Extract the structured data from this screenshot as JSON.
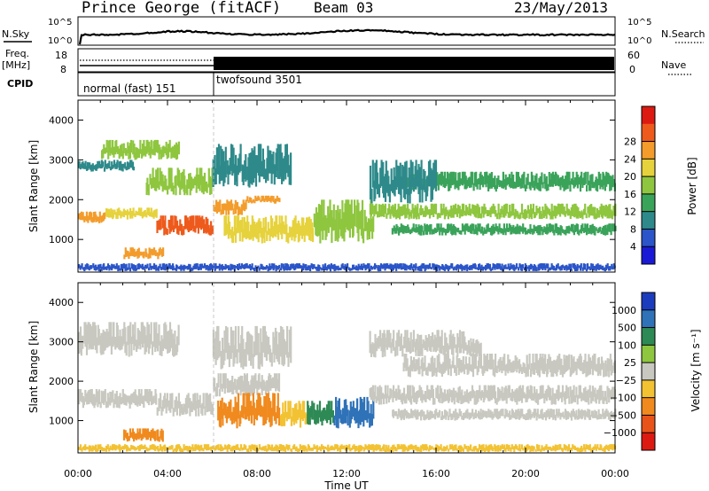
{
  "header": {
    "station": "Prince George (fitACF)",
    "beam": "Beam 03",
    "date": "23/May/2013"
  },
  "strips": {
    "nsky_label": "N.Sky",
    "nsearch_label": "N.Search",
    "noise_ticks_left": [
      "10^5",
      "10^0"
    ],
    "noise_ticks_right": [
      "10^5",
      "10^0"
    ],
    "freq_label": "Freq.",
    "freq_unit": "[MHz]",
    "freq_ticks": [
      "18",
      "8"
    ],
    "nave_label": "Nave",
    "nave_ticks": [
      "60",
      "0"
    ],
    "cpid_label": "CPID",
    "cpid_segments": [
      "normal (fast) 151",
      "twofsound 3501"
    ]
  },
  "chart_data": [
    {
      "type": "heatmap",
      "panel": "power",
      "ylabel": "Slant Range [km]",
      "xlabel": "Time UT",
      "x_ticks": [
        "00:00",
        "04:00",
        "08:00",
        "12:00",
        "16:00",
        "20:00",
        "00:00"
      ],
      "y_ticks": [
        1000,
        2000,
        3000,
        4000
      ],
      "xlim_hours": [
        0,
        24
      ],
      "ylim_km": [
        180,
        4500
      ],
      "colorbar": {
        "label": "Power [dB]",
        "ticks": [
          4,
          8,
          12,
          16,
          20,
          24,
          28
        ],
        "colors": [
          "#1a1ad6",
          "#2b55c8",
          "#2e8a8a",
          "#3aa35a",
          "#8ec63f",
          "#e6d23c",
          "#f39c2c",
          "#ee5a1c",
          "#dd1a12"
        ]
      },
      "scatter_bands": [
        {
          "t0": 0.0,
          "t1": 1.2,
          "r0": 1400,
          "r1": 1700,
          "level": 24
        },
        {
          "t0": 1.2,
          "t1": 3.5,
          "r0": 1500,
          "r1": 1800,
          "level": 18
        },
        {
          "t0": 3.5,
          "t1": 6.0,
          "r0": 1100,
          "r1": 1600,
          "level": 26
        },
        {
          "t0": 6.0,
          "t1": 7.5,
          "r0": 1600,
          "r1": 2000,
          "level": 24
        },
        {
          "t0": 7.5,
          "t1": 9.0,
          "r0": 1900,
          "r1": 2100,
          "level": 22
        },
        {
          "t0": 0.0,
          "t1": 2.5,
          "r0": 2700,
          "r1": 3000,
          "level": 8
        },
        {
          "t0": 1.0,
          "t1": 4.5,
          "r0": 3000,
          "r1": 3500,
          "level": 14
        },
        {
          "t0": 3.0,
          "t1": 6.0,
          "r0": 2100,
          "r1": 2800,
          "level": 16
        },
        {
          "t0": 2.0,
          "t1": 3.8,
          "r0": 500,
          "r1": 800,
          "level": 24
        },
        {
          "t0": 6.5,
          "t1": 10.5,
          "r0": 900,
          "r1": 1600,
          "level": 20
        },
        {
          "t0": 10.5,
          "t1": 13.2,
          "r0": 900,
          "r1": 2000,
          "level": 16
        },
        {
          "t0": 6.0,
          "t1": 9.5,
          "r0": 2300,
          "r1": 3400,
          "level": 8
        },
        {
          "t0": 13.0,
          "t1": 24.0,
          "r0": 1500,
          "r1": 1900,
          "level": 16
        },
        {
          "t0": 14.5,
          "t1": 24.0,
          "r0": 2200,
          "r1": 2700,
          "level": 12
        },
        {
          "t0": 14.0,
          "t1": 24.0,
          "r0": 1100,
          "r1": 1400,
          "level": 10
        },
        {
          "t0": 13.0,
          "t1": 16.0,
          "r0": 1900,
          "r1": 3000,
          "level": 6
        },
        {
          "t0": 0.0,
          "t1": 24.0,
          "r0": 200,
          "r1": 400,
          "level": 4
        }
      ]
    },
    {
      "type": "heatmap",
      "panel": "velocity",
      "ylabel": "Slant Range [km]",
      "xlabel": "Time UT",
      "x_ticks": [
        "00:00",
        "04:00",
        "08:00",
        "12:00",
        "16:00",
        "20:00",
        "00:00"
      ],
      "y_ticks": [
        1000,
        2000,
        3000,
        4000
      ],
      "xlim_hours": [
        0,
        24
      ],
      "ylim_km": [
        180,
        4500
      ],
      "colorbar": {
        "label": "Velocity [m s⁻¹]",
        "ticks": [
          "1000",
          "500",
          "100",
          "25",
          "−25",
          "−100",
          "−500",
          "−1000"
        ],
        "colors": [
          "#1c3cbe",
          "#2f72b8",
          "#2e8a55",
          "#8ec63f",
          "#c8c8c0",
          "#f2c232",
          "#f08a1e",
          "#e8531a",
          "#dd1a12"
        ]
      },
      "scatter_bands": [
        {
          "t0": 0.0,
          "t1": 3.5,
          "r0": 1300,
          "r1": 1800,
          "level": 0
        },
        {
          "t0": 3.5,
          "t1": 6.0,
          "r0": 1100,
          "r1": 1700,
          "level": 0
        },
        {
          "t0": 6.0,
          "t1": 9.0,
          "r0": 1600,
          "r1": 2200,
          "level": 0
        },
        {
          "t0": 0.0,
          "t1": 4.5,
          "r0": 2600,
          "r1": 3500,
          "level": 0
        },
        {
          "t0": 6.0,
          "t1": 9.5,
          "r0": 2300,
          "r1": 3400,
          "level": 0
        },
        {
          "t0": 6.2,
          "t1": 9.0,
          "r0": 800,
          "r1": 1700,
          "level": -300
        },
        {
          "t0": 2.0,
          "t1": 3.8,
          "r0": 450,
          "r1": 800,
          "level": -300
        },
        {
          "t0": 9.0,
          "t1": 10.2,
          "r0": 800,
          "r1": 1500,
          "level": -60
        },
        {
          "t0": 10.2,
          "t1": 11.4,
          "r0": 800,
          "r1": 1500,
          "level": 300
        },
        {
          "t0": 11.4,
          "t1": 13.2,
          "r0": 800,
          "r1": 1600,
          "level": 800
        },
        {
          "t0": 13.0,
          "t1": 24.0,
          "r0": 1400,
          "r1": 1900,
          "level": 0
        },
        {
          "t0": 14.5,
          "t1": 24.0,
          "r0": 2100,
          "r1": 2700,
          "level": 0
        },
        {
          "t0": 14.0,
          "t1": 24.0,
          "r0": 1000,
          "r1": 1300,
          "level": 0
        },
        {
          "t0": 13.0,
          "t1": 18.0,
          "r0": 2600,
          "r1": 3300,
          "level": 0
        },
        {
          "t0": 0.0,
          "t1": 24.0,
          "r0": 200,
          "r1": 400,
          "level": -60
        }
      ]
    }
  ]
}
